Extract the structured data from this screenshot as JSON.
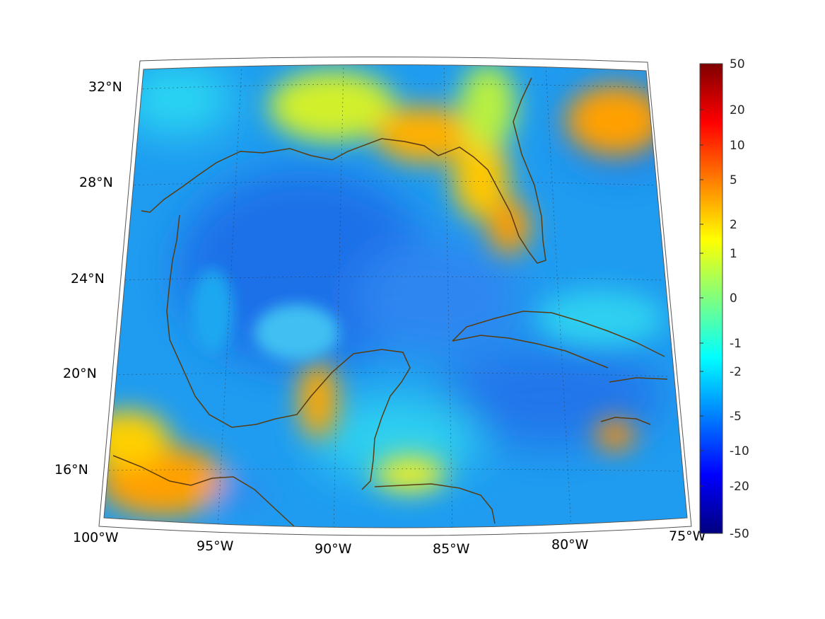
{
  "map": {
    "lat_ticks": [
      "32°N",
      "28°N",
      "24°N",
      "20°N",
      "16°N"
    ],
    "lon_ticks": [
      "100°W",
      "95°W",
      "90°W",
      "85°W",
      "80°W",
      "75°W"
    ],
    "grid": true,
    "coastline_color": "#5a3b10",
    "colormap": "jet"
  },
  "colorbar": {
    "tick_labels": [
      "50",
      "20",
      "10",
      "5",
      "2",
      "1",
      "0",
      "-1",
      "-2",
      "-5",
      "-10",
      "-20",
      "-50"
    ]
  }
}
